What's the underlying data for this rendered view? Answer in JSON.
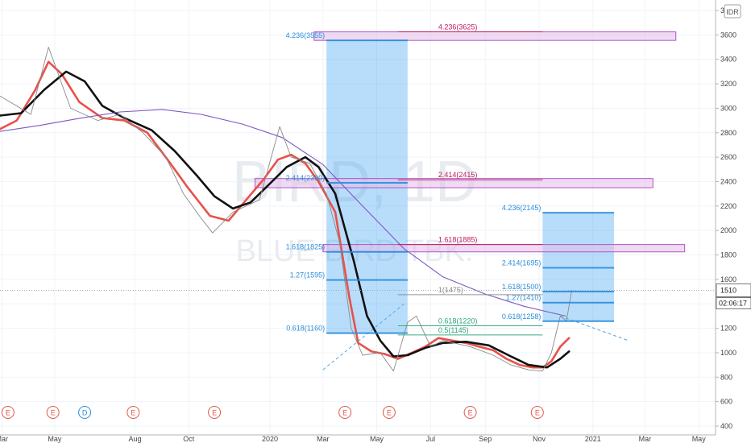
{
  "chart_data": {
    "type": "line",
    "currency_badge": "IDR",
    "watermark": {
      "ticker": "BIRD, 1D",
      "company": "BLUE BIRD TBK."
    },
    "y_axis": {
      "min": 400,
      "max": 3800,
      "ticks": [
        400,
        600,
        800,
        1000,
        1200,
        1400,
        1600,
        1800,
        2000,
        2200,
        2400,
        2600,
        2800,
        3000,
        3200,
        3400,
        3600,
        3800
      ]
    },
    "x_axis": {
      "range": [
        "2019-03-01",
        "2021-05-20"
      ],
      "ticks": [
        {
          "label": "Mar",
          "date": "2019-03-03"
        },
        {
          "label": "May",
          "date": "2019-05-02"
        },
        {
          "label": "Aug",
          "date": "2019-08-01"
        },
        {
          "label": "Oct",
          "date": "2019-10-01"
        },
        {
          "label": "2020",
          "date": "2020-01-01"
        },
        {
          "label": "Mar",
          "date": "2020-03-01"
        },
        {
          "label": "May",
          "date": "2020-05-01"
        },
        {
          "label": "Jul",
          "date": "2020-07-01"
        },
        {
          "label": "Sep",
          "date": "2020-09-01"
        },
        {
          "label": "Nov",
          "date": "2020-11-01"
        },
        {
          "label": "2021",
          "date": "2021-01-01"
        },
        {
          "label": "Mar",
          "date": "2021-03-01"
        },
        {
          "label": "May",
          "date": "2021-05-01"
        }
      ]
    },
    "last_price": {
      "value": 1510,
      "label": "1510",
      "countdown": "02:06:17"
    },
    "series": [
      {
        "color": "#e8514a",
        "points": [
          [
            "2019-03-01",
            2830
          ],
          [
            "2019-03-20",
            2900
          ],
          [
            "2019-04-10",
            3150
          ],
          [
            "2019-04-25",
            3380
          ],
          [
            "2019-05-10",
            3280
          ],
          [
            "2019-05-30",
            3050
          ],
          [
            "2019-06-25",
            2920
          ],
          [
            "2019-07-20",
            2900
          ],
          [
            "2019-08-15",
            2800
          ],
          [
            "2019-09-10",
            2550
          ],
          [
            "2019-09-30",
            2350
          ],
          [
            "2019-10-25",
            2120
          ],
          [
            "2019-11-15",
            2080
          ],
          [
            "2019-12-05",
            2250
          ],
          [
            "2019-12-25",
            2420
          ],
          [
            "2020-01-10",
            2580
          ],
          [
            "2020-01-25",
            2620
          ],
          [
            "2020-02-10",
            2550
          ],
          [
            "2020-02-25",
            2400
          ],
          [
            "2020-03-15",
            2150
          ],
          [
            "2020-03-31",
            1450
          ],
          [
            "2020-04-10",
            1080
          ],
          [
            "2020-04-25",
            1010
          ],
          [
            "2020-05-10",
            990
          ],
          [
            "2020-05-25",
            950
          ],
          [
            "2020-06-10",
            1000
          ],
          [
            "2020-06-25",
            1050
          ],
          [
            "2020-07-10",
            1120
          ],
          [
            "2020-07-25",
            1100
          ],
          [
            "2020-08-10",
            1080
          ],
          [
            "2020-08-25",
            1050
          ],
          [
            "2020-09-10",
            1020
          ],
          [
            "2020-09-25",
            950
          ],
          [
            "2020-10-10",
            900
          ],
          [
            "2020-10-25",
            880
          ],
          [
            "2020-11-05",
            880
          ],
          [
            "2020-11-15",
            930
          ],
          [
            "2020-11-25",
            1050
          ],
          [
            "2020-12-05",
            1120
          ]
        ]
      },
      {
        "color": "#111111",
        "points": [
          [
            "2019-03-01",
            2940
          ],
          [
            "2019-03-25",
            2960
          ],
          [
            "2019-04-20",
            3150
          ],
          [
            "2019-05-15",
            3300
          ],
          [
            "2019-06-05",
            3220
          ],
          [
            "2019-06-25",
            3020
          ],
          [
            "2019-07-20",
            2920
          ],
          [
            "2019-08-20",
            2820
          ],
          [
            "2019-09-15",
            2650
          ],
          [
            "2019-10-10",
            2450
          ],
          [
            "2019-10-30",
            2280
          ],
          [
            "2019-11-20",
            2180
          ],
          [
            "2019-12-10",
            2230
          ],
          [
            "2019-12-30",
            2370
          ],
          [
            "2020-01-20",
            2520
          ],
          [
            "2020-02-10",
            2600
          ],
          [
            "2020-02-25",
            2520
          ],
          [
            "2020-03-15",
            2300
          ],
          [
            "2020-04-05",
            1750
          ],
          [
            "2020-04-20",
            1300
          ],
          [
            "2020-05-05",
            1100
          ],
          [
            "2020-05-20",
            970
          ],
          [
            "2020-06-05",
            980
          ],
          [
            "2020-06-25",
            1040
          ],
          [
            "2020-07-15",
            1080
          ],
          [
            "2020-08-10",
            1090
          ],
          [
            "2020-09-05",
            1060
          ],
          [
            "2020-09-30",
            970
          ],
          [
            "2020-10-20",
            900
          ],
          [
            "2020-11-10",
            880
          ],
          [
            "2020-11-25",
            950
          ],
          [
            "2020-12-05",
            1010
          ]
        ]
      },
      {
        "color": "#7e57c2",
        "points": [
          [
            "2019-03-01",
            2810
          ],
          [
            "2019-04-15",
            2860
          ],
          [
            "2019-06-01",
            2920
          ],
          [
            "2019-07-15",
            2970
          ],
          [
            "2019-09-01",
            2990
          ],
          [
            "2019-10-15",
            2950
          ],
          [
            "2019-12-01",
            2870
          ],
          [
            "2020-01-15",
            2760
          ],
          [
            "2020-03-01",
            2540
          ],
          [
            "2020-04-15",
            2200
          ],
          [
            "2020-06-01",
            1850
          ],
          [
            "2020-07-15",
            1620
          ],
          [
            "2020-09-01",
            1480
          ],
          [
            "2020-10-15",
            1380
          ],
          [
            "2020-12-01",
            1300
          ]
        ]
      },
      {
        "color": "#8a8a8a",
        "points": [
          [
            "2019-03-01",
            3100
          ],
          [
            "2019-04-05",
            2950
          ],
          [
            "2019-04-25",
            3500
          ],
          [
            "2019-05-20",
            3000
          ],
          [
            "2019-06-20",
            2900
          ],
          [
            "2019-07-15",
            2950
          ],
          [
            "2019-08-10",
            2800
          ],
          [
            "2019-09-05",
            2600
          ],
          [
            "2019-09-25",
            2300
          ],
          [
            "2019-10-15",
            2100
          ],
          [
            "2019-10-28",
            1980
          ],
          [
            "2019-11-20",
            2150
          ],
          [
            "2019-12-20",
            2250
          ],
          [
            "2020-01-12",
            2850
          ],
          [
            "2020-01-25",
            2600
          ],
          [
            "2020-02-15",
            2550
          ],
          [
            "2020-03-05",
            2300
          ],
          [
            "2020-03-20",
            1900
          ],
          [
            "2020-04-02",
            1200
          ],
          [
            "2020-04-15",
            980
          ],
          [
            "2020-05-05",
            1000
          ],
          [
            "2020-05-20",
            850
          ],
          [
            "2020-06-05",
            1250
          ],
          [
            "2020-06-15",
            1300
          ],
          [
            "2020-07-01",
            1050
          ],
          [
            "2020-07-15",
            1100
          ],
          [
            "2020-08-15",
            1050
          ],
          [
            "2020-09-10",
            980
          ],
          [
            "2020-09-30",
            900
          ],
          [
            "2020-10-20",
            860
          ],
          [
            "2020-11-05",
            850
          ],
          [
            "2020-11-15",
            1000
          ],
          [
            "2020-11-25",
            1300
          ],
          [
            "2020-12-02",
            1260
          ],
          [
            "2020-12-08",
            1510
          ]
        ]
      }
    ],
    "projection_boxes": [
      {
        "x0": "2020-03-05",
        "x1": "2020-06-05",
        "y0": 1160,
        "y1": 3555
      },
      {
        "x0": "2020-11-05",
        "x1": "2021-01-25",
        "y0": 1258,
        "y1": 2145
      }
    ],
    "fib_levels": [
      {
        "label": "4.236(3555)",
        "value": 3555,
        "x0": "2020-03-05",
        "x1": "2020-06-05",
        "color": "#2a8ddb"
      },
      {
        "label": "1.618(1825)",
        "value": 1825,
        "x0": "2020-03-05",
        "x1": "2020-06-05",
        "color": "#2a8ddb"
      },
      {
        "label": "1.27(1595)",
        "value": 1595,
        "x0": "2020-03-05",
        "x1": "2020-06-05",
        "color": "#2a8ddb"
      },
      {
        "label": "0.618(1160)",
        "value": 1160,
        "x0": "2020-03-05",
        "x1": "2020-06-05",
        "color": "#2a8ddb"
      },
      {
        "label": "2.414(2390)",
        "value": 2390,
        "x0": "2020-03-05",
        "x1": "2020-06-05",
        "color": "#2a8ddb"
      },
      {
        "label": "4.236(2145)",
        "value": 2145,
        "x0": "2020-11-05",
        "x1": "2021-01-25",
        "color": "#2a8ddb"
      },
      {
        "label": "2.414(1695)",
        "value": 1695,
        "x0": "2020-11-05",
        "x1": "2021-01-25",
        "color": "#2a8ddb"
      },
      {
        "label": "1.618(1500)",
        "value": 1500,
        "x0": "2020-11-05",
        "x1": "2021-01-25",
        "color": "#2a8ddb"
      },
      {
        "label": "1.27(1410)",
        "value": 1410,
        "x0": "2020-11-05",
        "x1": "2021-01-25",
        "color": "#2a8ddb"
      },
      {
        "label": "0.618(1258)",
        "value": 1258,
        "x0": "2020-11-05",
        "x1": "2021-01-25",
        "color": "#2a8ddb"
      },
      {
        "label": "4.236(3625)",
        "value": 3625,
        "x0": "2020-05-25",
        "x1": "2020-11-05",
        "color": "#c2185b"
      },
      {
        "label": "2.414(2415)",
        "value": 2415,
        "x0": "2020-05-25",
        "x1": "2020-11-05",
        "color": "#c2185b"
      },
      {
        "label": "1.618(1885)",
        "value": 1885,
        "x0": "2020-05-25",
        "x1": "2020-11-05",
        "color": "#c2185b"
      },
      {
        "label": "1(1475)",
        "value": 1475,
        "x0": "2020-05-25",
        "x1": "2020-11-05",
        "color": "#888888"
      },
      {
        "label": "0.618(1220)",
        "value": 1220,
        "x0": "2020-05-25",
        "x1": "2020-11-05",
        "color": "#2aa37a"
      },
      {
        "label": "0.5(1145)",
        "value": 1145,
        "x0": "2020-05-25",
        "x1": "2020-11-05",
        "color": "#2aa37a"
      }
    ],
    "resistance_zones": [
      {
        "x0": "2020-02-20",
        "x1": "2021-04-05",
        "y0": 3555,
        "y1": 3625
      },
      {
        "x0": "2019-12-15",
        "x1": "2021-03-10",
        "y0": 2350,
        "y1": 2425
      },
      {
        "x0": "2020-03-01",
        "x1": "2021-04-15",
        "y0": 1825,
        "y1": 1885
      }
    ],
    "trend_lines": [
      {
        "points": [
          [
            "2020-03-01",
            860
          ],
          [
            "2020-06-01",
            1400
          ]
        ]
      },
      {
        "points": [
          [
            "2020-11-25",
            1300
          ],
          [
            "2021-02-10",
            1100
          ]
        ]
      }
    ],
    "events": [
      {
        "label": "E",
        "type": "earnings",
        "date": "2019-03-10"
      },
      {
        "label": "E",
        "type": "earnings",
        "date": "2019-04-30"
      },
      {
        "label": "D",
        "type": "dividend",
        "date": "2019-06-05"
      },
      {
        "label": "E",
        "type": "earnings",
        "date": "2019-07-30"
      },
      {
        "label": "E",
        "type": "earnings",
        "date": "2019-10-30"
      },
      {
        "label": "E",
        "type": "earnings",
        "date": "2020-03-26"
      },
      {
        "label": "E",
        "type": "earnings",
        "date": "2020-05-15"
      },
      {
        "label": "E",
        "type": "earnings",
        "date": "2020-08-15"
      },
      {
        "label": "E",
        "type": "earnings",
        "date": "2020-10-30"
      }
    ],
    "colors": {
      "earnings": "#e0584a",
      "dividend": "#2a8ddb",
      "box_fill": "#2196f3",
      "zone_fill": "#e1bee7",
      "zone_stroke": "#b253c8"
    }
  }
}
